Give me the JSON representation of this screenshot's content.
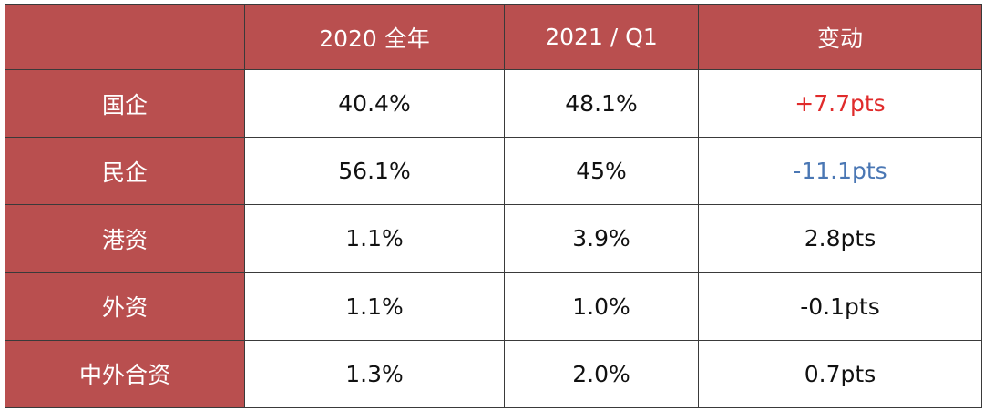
{
  "table": {
    "header": [
      "",
      "2020 全年",
      "2021 / Q1",
      "变动"
    ],
    "rows": [
      {
        "label": "国企",
        "y2020": "40.4%",
        "q1_2021": "48.1%",
        "change": "+7.7pts",
        "change_color": "#e02b2b"
      },
      {
        "label": "民企",
        "y2020": "56.1%",
        "q1_2021": "45%",
        "change": "-11.1pts",
        "change_color": "#4a77b4"
      },
      {
        "label": "港资",
        "y2020": "1.1%",
        "q1_2021": "3.9%",
        "change": "2.8pts",
        "change_color": "#111111"
      },
      {
        "label": "外资",
        "y2020": "1.1%",
        "q1_2021": "1.0%",
        "change": "-0.1pts",
        "change_color": "#111111"
      },
      {
        "label": "中外合资",
        "y2020": "1.3%",
        "q1_2021": "2.0%",
        "change": "0.7pts",
        "change_color": "#111111"
      }
    ]
  },
  "colors": {
    "header_bg": "#b94f4f",
    "header_text": "#ffffff",
    "border": "#3a3a3a",
    "positive": "#e02b2b",
    "negative": "#4a77b4"
  }
}
